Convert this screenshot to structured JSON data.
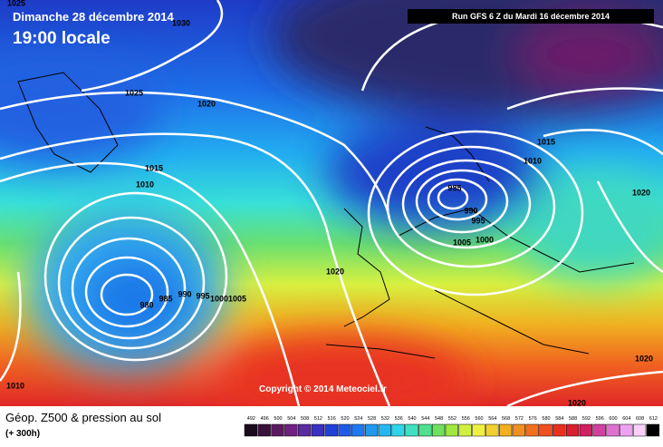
{
  "header": {
    "date": "Dimanche 28 décembre 2014",
    "time": "19:00 locale",
    "run": "Run GFS 6 Z du Mardi 16 décembre 2014"
  },
  "copyright": "Copyright © 2014 Meteociel.fr",
  "footer": {
    "title": "Géop. Z500 & pression au sol",
    "lead": "(+ 300h)"
  },
  "isobar_labels": [
    "1025",
    "1030",
    "1025",
    "1020",
    "1015",
    "1010",
    "980",
    "985",
    "990",
    "995",
    "1000",
    "1005",
    "1020",
    "985",
    "990",
    "995",
    "1000",
    "1005",
    "1010",
    "1015",
    "1020",
    "1020",
    "1020",
    "1010"
  ],
  "scale": {
    "values": [
      492,
      496,
      500,
      504,
      508,
      512,
      516,
      520,
      524,
      528,
      532,
      536,
      540,
      544,
      548,
      552,
      556,
      560,
      564,
      568,
      572,
      576,
      580,
      584,
      588,
      592,
      596,
      600,
      604,
      608,
      612
    ],
    "colors": [
      "#1a0a1a",
      "#3a0f3a",
      "#5a1a60",
      "#702080",
      "#5a2aa0",
      "#3a30c0",
      "#2040d8",
      "#1d5ae8",
      "#1f78f0",
      "#2098f0",
      "#25b8f0",
      "#30d4e8",
      "#40e0c0",
      "#50e090",
      "#70e060",
      "#a0e840",
      "#d0f040",
      "#f0f040",
      "#f0d030",
      "#f0b020",
      "#f09020",
      "#f07020",
      "#f05020",
      "#e83020",
      "#d82030",
      "#d02060",
      "#d040a0",
      "#e070d0",
      "#f0a0f0",
      "#f8d0f8",
      "#000000"
    ]
  }
}
